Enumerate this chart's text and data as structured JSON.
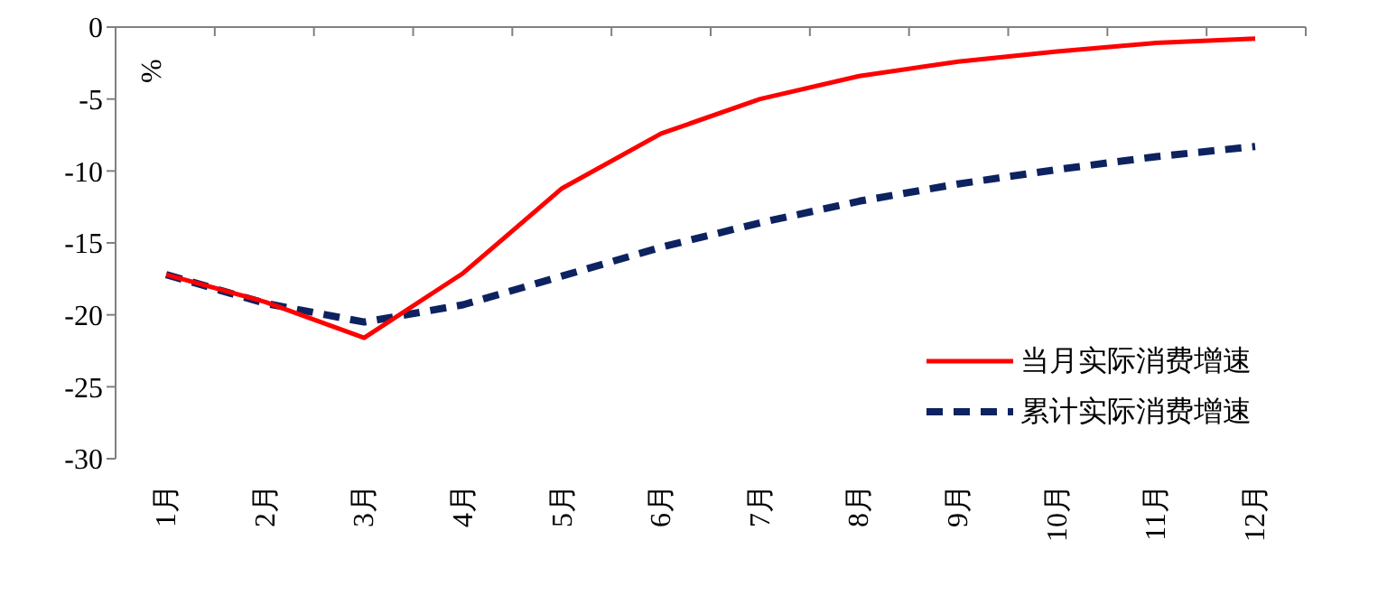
{
  "chart_data": {
    "type": "line",
    "ylabel": "%",
    "categories": [
      "1月",
      "2月",
      "3月",
      "4月",
      "5月",
      "6月",
      "7月",
      "8月",
      "9月",
      "10月",
      "11月",
      "12月"
    ],
    "series": [
      {
        "name": "当月实际消费增速",
        "color": "#ff0000",
        "line_style": "solid",
        "values": [
          -17.2,
          -19.1,
          -21.6,
          -17.1,
          -11.2,
          -7.4,
          -5.0,
          -3.4,
          -2.4,
          -1.7,
          -1.1,
          -0.8
        ]
      },
      {
        "name": "累计实际消费增速",
        "color": "#0d2260",
        "line_style": "dashed",
        "values": [
          -17.2,
          -19.2,
          -20.5,
          -19.3,
          -17.3,
          -15.3,
          -13.6,
          -12.1,
          -10.9,
          -9.9,
          -9.0,
          -8.3
        ]
      }
    ],
    "ylim": [
      -30,
      0
    ],
    "yticks": [
      -30,
      -25,
      -20,
      -15,
      -10,
      -5,
      0
    ],
    "grid": false,
    "legend": "right",
    "marker": "none"
  }
}
